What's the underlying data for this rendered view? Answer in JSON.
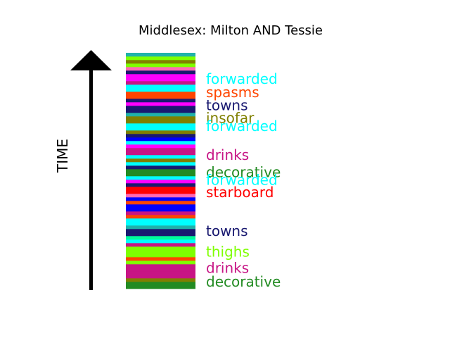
{
  "chart_data": {
    "type": "bar",
    "title": "Middlesex: Milton AND Tessie",
    "ylabel": "TIME",
    "stripes": [
      "#228B22",
      "#228B22",
      "#808000",
      "#C71585",
      "#C71585",
      "#C71585",
      "#C71585",
      "#7FFF00",
      "#FF4500",
      "#7FFF00",
      "#7FFF00",
      "#7FFF00",
      "#C71585",
      "#00FFFF",
      "#00FA9A",
      "#191970",
      "#191970",
      "#20B2AA",
      "#00FFFF",
      "#00FFFF",
      "#FF4500",
      "#C71585",
      "#0000FF",
      "#0000FF",
      "#FF4500",
      "#0000FF",
      "#FF69B4",
      "#FF0000",
      "#FF0000",
      "#191970",
      "#FF00FF",
      "#00FFFF",
      "#228B22",
      "#228B22",
      "#191970",
      "#00FFFF",
      "#808000",
      "#00FFFF",
      "#C71585",
      "#C71585",
      "#FF00FF",
      "#00FFFF",
      "#0000FF",
      "#191970",
      "#808000",
      "#00FFFF",
      "#00FFFF",
      "#808000",
      "#808000",
      "#20B2AA",
      "#191970",
      "#191970",
      "#FF00FF",
      "#191970",
      "#FF4500",
      "#FF4500",
      "#00FFFF",
      "#00FFFF",
      "#C71585",
      "#FF00FF",
      "#FF00FF",
      "#191970",
      "#FF69B4",
      "#7FFF00",
      "#808000",
      "#7FFF00",
      "#20B2AA"
    ],
    "annotations": [
      {
        "label": "forwarded",
        "pos": 0.885,
        "color": "#00FFFF"
      },
      {
        "label": "spasms",
        "pos": 0.828,
        "color": "#FF4500"
      },
      {
        "label": "towns",
        "pos": 0.773,
        "color": "#191970"
      },
      {
        "label": "insofar",
        "pos": 0.72,
        "color": "#808000"
      },
      {
        "label": "forwarded",
        "pos": 0.685,
        "color": "#00FFFF"
      },
      {
        "label": "drinks",
        "pos": 0.563,
        "color": "#C71585"
      },
      {
        "label": "decorative",
        "pos": 0.49,
        "color": "#228B22"
      },
      {
        "label": "forwarded",
        "pos": 0.457,
        "color": "#00FFFF"
      },
      {
        "label": "starboard",
        "pos": 0.405,
        "color": "#FF0000"
      },
      {
        "label": "towns",
        "pos": 0.24,
        "color": "#191970"
      },
      {
        "label": "thighs",
        "pos": 0.152,
        "color": "#7FFF00"
      },
      {
        "label": "drinks",
        "pos": 0.083,
        "color": "#C71585"
      },
      {
        "label": "decorative",
        "pos": 0.025,
        "color": "#228B22"
      }
    ]
  }
}
